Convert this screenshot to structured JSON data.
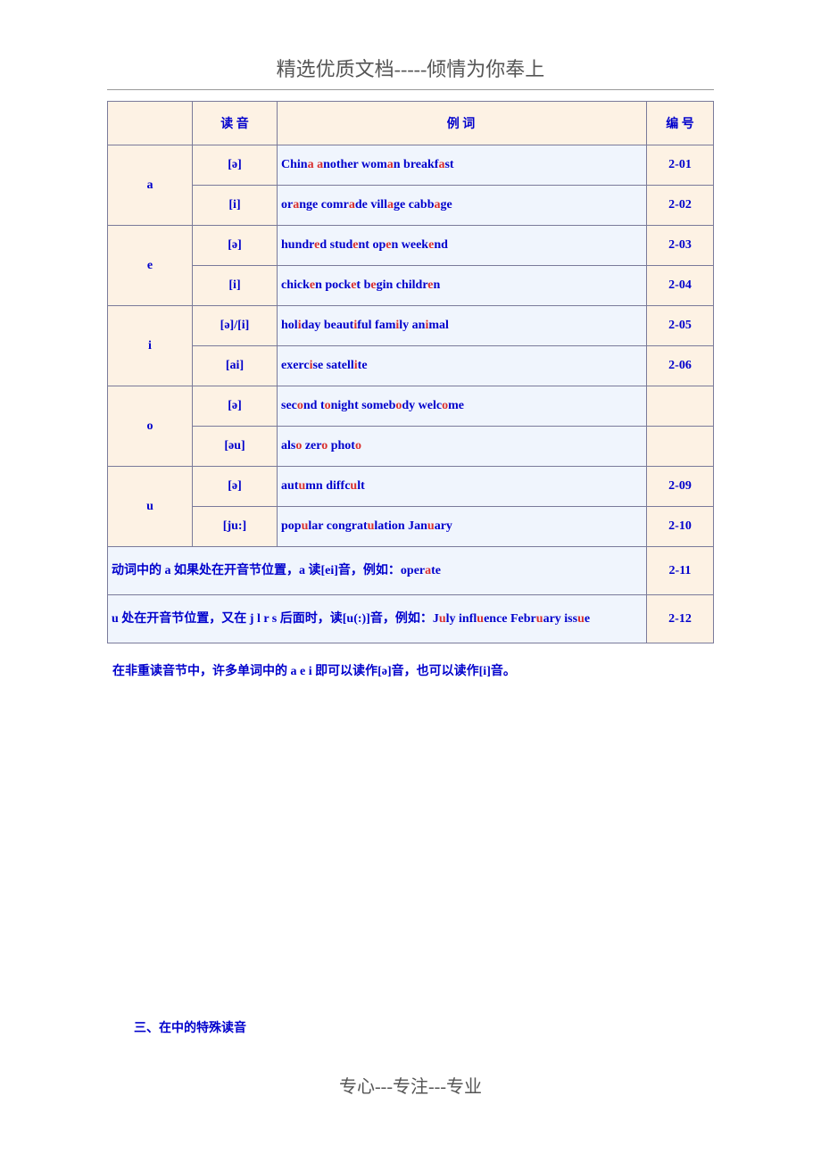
{
  "header": {
    "title": "精选优质文档-----倾情为你奉上"
  },
  "table": {
    "headers": {
      "sound": "读 音",
      "words": "例 词",
      "num": "编 号"
    },
    "rows": [
      {
        "letter": "a",
        "sound": "[ə]",
        "words_parts": [
          "Chin",
          "a",
          " ",
          "a",
          "nother wom",
          "a",
          "n breakf",
          "a",
          "st"
        ],
        "num": "2-01"
      },
      {
        "letter": "",
        "sound": "[i]",
        "words_parts": [
          "or",
          "a",
          "nge comr",
          "a",
          "de vill",
          "a",
          "ge cabb",
          "a",
          "ge"
        ],
        "num": "2-02"
      },
      {
        "letter": "e",
        "sound": "[ə]",
        "words_parts": [
          "hundr",
          "e",
          "d stud",
          "e",
          "nt op",
          "e",
          "n week",
          "e",
          "nd"
        ],
        "num": "2-03"
      },
      {
        "letter": "",
        "sound": "[i]",
        "words_parts": [
          "chick",
          "e",
          "n pock",
          "e",
          "t b",
          "e",
          "gin childr",
          "e",
          "n"
        ],
        "num": "2-04"
      },
      {
        "letter": "i",
        "sound": "[ə]/[i]",
        "words_parts": [
          "hol",
          "i",
          "day beaut",
          "i",
          "ful fam",
          "i",
          "ly an",
          "i",
          "mal"
        ],
        "num": "2-05"
      },
      {
        "letter": "",
        "sound": "[ai]",
        "words_parts": [
          "exerc",
          "i",
          "se satell",
          "i",
          "te"
        ],
        "num": "2-06"
      },
      {
        "letter": "o",
        "sound": "[ə]",
        "words_parts": [
          "sec",
          "o",
          "nd t",
          "o",
          "night someb",
          "o",
          "dy welc",
          "o",
          "me"
        ],
        "num": ""
      },
      {
        "letter": "",
        "sound": "[əu]",
        "words_parts": [
          "als",
          "o",
          " zer",
          "o",
          " phot",
          "o",
          ""
        ],
        "num": ""
      },
      {
        "letter": "u",
        "sound": "[ə]",
        "words_parts": [
          "aut",
          "u",
          "mn diffc",
          "u",
          "lt"
        ],
        "num": "2-09"
      },
      {
        "letter": "",
        "sound": "[ju:]",
        "words_parts": [
          "pop",
          "u",
          "lar congrat",
          "u",
          "lation Jan",
          "u",
          "ary"
        ],
        "num": "2-10"
      }
    ],
    "notes": [
      {
        "parts": [
          "动词中的 a 如果处在开音节位置，a 读[ei]音，例如：oper",
          "a",
          "te"
        ],
        "num": "2-11"
      },
      {
        "parts": [
          "u 处在开音节位置，又在 j l r s 后面时，读[u(:)]音，例如：J",
          "u",
          "ly infl",
          "u",
          "ence Febr",
          "u",
          "ary iss",
          "u",
          "e"
        ],
        "num": "2-12"
      }
    ]
  },
  "footnote": "在非重读音节中，许多单词中的 a e i 即可以读作[ə]音，也可以读作[i]音。",
  "section_title": "三、在中的特殊读音",
  "footer": "专心---专注---专业",
  "colors": {
    "text_blue": "#0000cc",
    "text_red": "#d83030",
    "bg_cream": "#fdf2e4",
    "bg_lightblue": "#f0f5fd",
    "border": "#7a7a9a",
    "header_gray": "#555555"
  }
}
